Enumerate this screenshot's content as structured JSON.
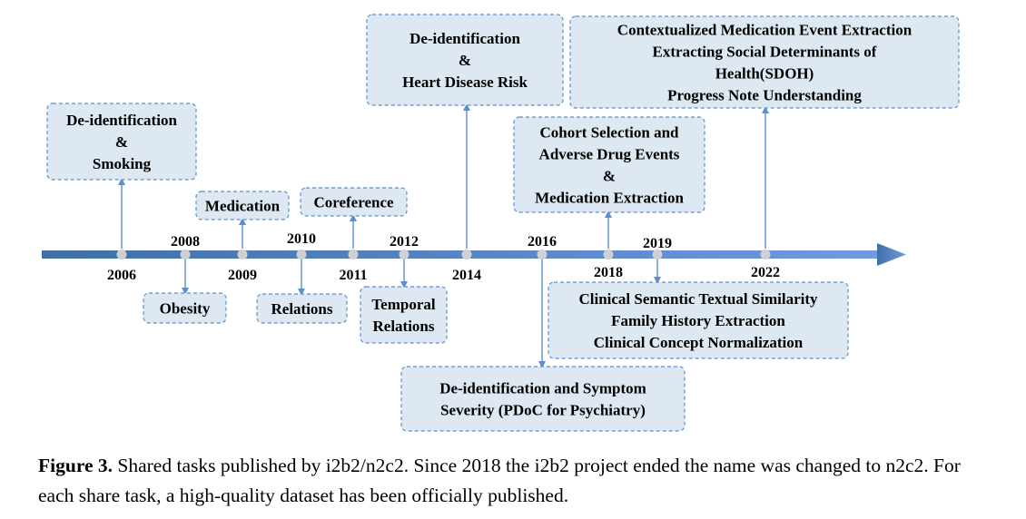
{
  "timeline": {
    "years": [
      "2006",
      "2008",
      "2009",
      "2010",
      "2011",
      "2012",
      "2014",
      "2016",
      "2018",
      "2019",
      "2022"
    ],
    "events": [
      {
        "id": "e2006",
        "lines": [
          "De-identification",
          "&",
          "Smoking"
        ]
      },
      {
        "id": "e2008",
        "lines": [
          "Obesity"
        ]
      },
      {
        "id": "e2009",
        "lines": [
          "Medication"
        ]
      },
      {
        "id": "e2010",
        "lines": [
          "Relations"
        ]
      },
      {
        "id": "e2011",
        "lines": [
          "Coreference"
        ]
      },
      {
        "id": "e2012",
        "lines": [
          "Temporal",
          "Relations"
        ]
      },
      {
        "id": "e2014",
        "lines": [
          "De-identification",
          "&",
          "Heart Disease Risk"
        ]
      },
      {
        "id": "e2016",
        "lines": [
          "De-identification and Symptom",
          "Severity (PDoC for Psychiatry)"
        ]
      },
      {
        "id": "e2018",
        "lines": [
          "Cohort Selection and",
          "Adverse Drug Events",
          "&",
          "Medication Extraction"
        ]
      },
      {
        "id": "e2019",
        "lines": [
          "Clinical Semantic Textual Similarity",
          "Family History Extraction",
          "Clinical Concept Normalization"
        ]
      },
      {
        "id": "e2022",
        "lines": [
          "Contextualized Medication Event Extraction",
          "Extracting Social Determinants of",
          "Health(SDOH)",
          "Progress Note Understanding"
        ]
      }
    ]
  },
  "caption": {
    "label": "Figure 3.",
    "text": "Shared tasks published by i2b2/n2c2. Since 2018 the i2b2 project ended the name was changed to n2c2. For each share task, a high-quality dataset has been officially published."
  },
  "colors": {
    "axis_start": "#3f6fa6",
    "axis_end": "#6f9be0",
    "box_fill": "#dde8f3",
    "box_border": "#5b8fd0",
    "connector": "#5b8fd0",
    "dot": "#d0d0d0"
  }
}
